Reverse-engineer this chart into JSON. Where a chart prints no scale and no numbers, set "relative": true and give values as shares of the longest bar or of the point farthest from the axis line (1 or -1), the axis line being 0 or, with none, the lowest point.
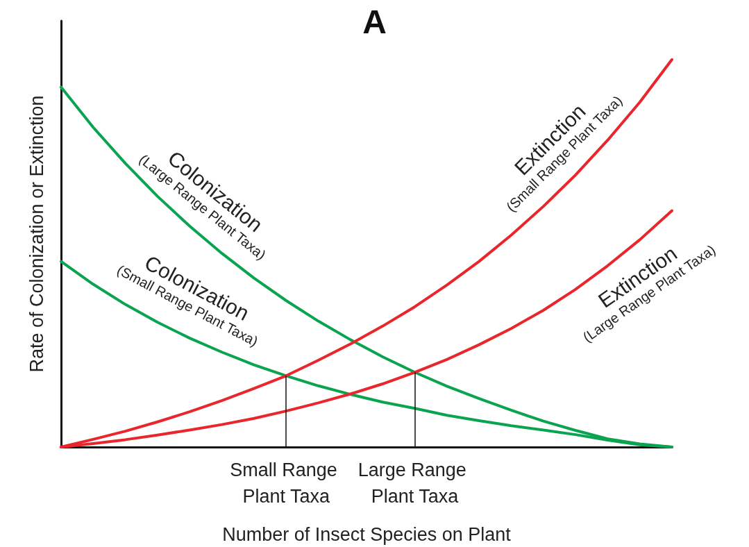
{
  "chart_data": {
    "type": "line",
    "title": "A",
    "xlabel": "Number of Insect Species on Plant",
    "ylabel": "Rate of Colonization or Extinction",
    "relative": true,
    "legend": false,
    "grid": false,
    "marker": "none",
    "line_style": "solid",
    "categories": [
      null,
      null,
      null,
      null,
      null,
      null,
      null,
      "Small Range Plant Taxa",
      null,
      null,
      null,
      "Large Range Plant Taxa",
      null,
      null,
      null,
      null,
      null,
      null,
      null,
      null
    ],
    "series": [
      {
        "name": "Colonization\n(Large Range Plant Taxa)",
        "color": "#0aa451",
        "values": [
          0.929,
          0.825,
          0.732,
          0.647,
          0.57,
          0.5,
          0.436,
          0.378,
          0.325,
          0.277,
          0.233,
          0.193,
          0.157,
          0.125,
          0.095,
          0.067,
          0.043,
          0.021,
          0.008,
          0
        ]
      },
      {
        "name": "Colonization\n(Small Range Plant Taxa)",
        "color": "#0aa451",
        "values": [
          0.479,
          0.42,
          0.368,
          0.322,
          0.281,
          0.245,
          0.212,
          0.184,
          0.158,
          0.136,
          0.116,
          0.1,
          0.082,
          0.068,
          0.055,
          0.044,
          0.032,
          0.018,
          0.006,
          0
        ]
      },
      {
        "name": "Extinction\n(Small Range Plant Taxa)",
        "color": "#e8262c",
        "values": [
          0,
          0.02,
          0.041,
          0.065,
          0.091,
          0.12,
          0.151,
          0.184,
          0.224,
          0.266,
          0.312,
          0.362,
          0.418,
          0.479,
          0.547,
          0.621,
          0.702,
          0.792,
          0.89,
          1
        ]
      },
      {
        "name": "Extinction\n(Large Range Plant Taxa)",
        "color": "#e8262c",
        "values": [
          0,
          0.009,
          0.019,
          0.031,
          0.044,
          0.058,
          0.074,
          0.093,
          0.114,
          0.137,
          0.163,
          0.193,
          0.226,
          0.264,
          0.306,
          0.353,
          0.407,
          0.468,
          0.535,
          0.61
        ]
      }
    ],
    "ref_lines": [
      {
        "axis": "x",
        "value": "Small Range Plant Taxa",
        "color": "#111111"
      },
      {
        "axis": "x",
        "value": "Large Range Plant Taxa",
        "color": "#111111"
      }
    ]
  }
}
